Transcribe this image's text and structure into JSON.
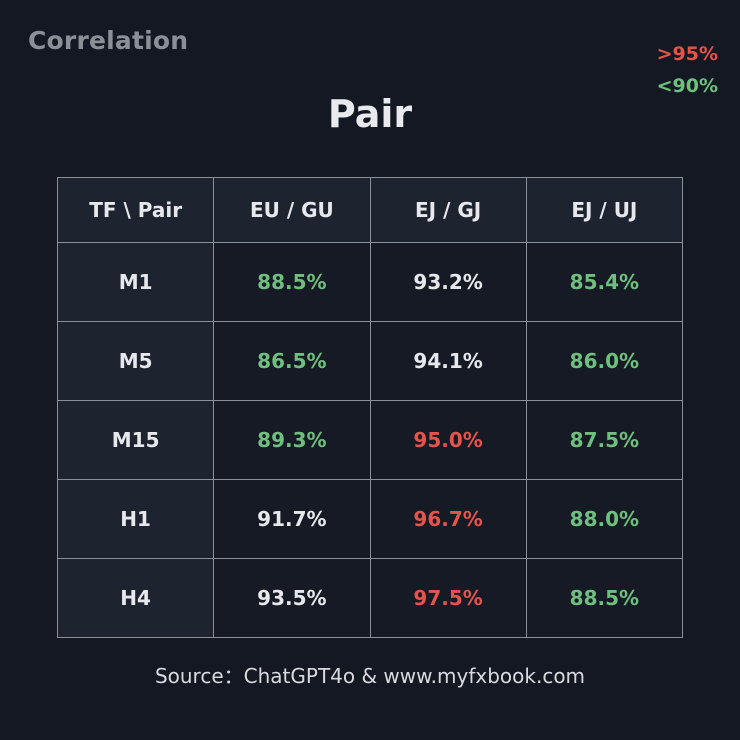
{
  "brand": "Correlation",
  "legend": {
    "high": ">95%",
    "low": "<90%"
  },
  "colors": {
    "background": "#141822",
    "high": "#e5534b",
    "low": "#6fbf7e",
    "neutral": "#e6e8ec"
  },
  "source": "Source：ChatGPT4o & www.myfxbook.com",
  "chart_data": {
    "type": "table",
    "title": "Pair",
    "corner_header": "TF \\ Pair",
    "columns": [
      "EU / GU",
      "EJ / GJ",
      "EJ / UJ"
    ],
    "rows": [
      {
        "label": "M1",
        "cells": [
          {
            "text": "88.5%",
            "value": 88.5,
            "color": "green"
          },
          {
            "text": "93.2%",
            "value": 93.2,
            "color": "white"
          },
          {
            "text": "85.4%",
            "value": 85.4,
            "color": "green"
          }
        ]
      },
      {
        "label": "M5",
        "cells": [
          {
            "text": "86.5%",
            "value": 86.5,
            "color": "green"
          },
          {
            "text": "94.1%",
            "value": 94.1,
            "color": "white"
          },
          {
            "text": "86.0%",
            "value": 86.0,
            "color": "green"
          }
        ]
      },
      {
        "label": "M15",
        "cells": [
          {
            "text": "89.3%",
            "value": 89.3,
            "color": "green"
          },
          {
            "text": "95.0%",
            "value": 95.0,
            "color": "red"
          },
          {
            "text": "87.5%",
            "value": 87.5,
            "color": "green"
          }
        ]
      },
      {
        "label": "H1",
        "cells": [
          {
            "text": "91.7%",
            "value": 91.7,
            "color": "white"
          },
          {
            "text": "96.7%",
            "value": 96.7,
            "color": "red"
          },
          {
            "text": "88.0%",
            "value": 88.0,
            "color": "green"
          }
        ]
      },
      {
        "label": "H4",
        "cells": [
          {
            "text": "93.5%",
            "value": 93.5,
            "color": "white"
          },
          {
            "text": "97.5%",
            "value": 97.5,
            "color": "red"
          },
          {
            "text": "88.5%",
            "value": 88.5,
            "color": "green"
          }
        ]
      }
    ]
  }
}
